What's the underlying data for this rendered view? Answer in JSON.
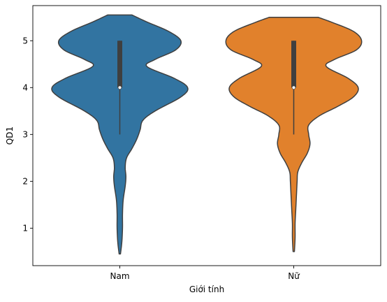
{
  "chart_data": {
    "type": "violin",
    "title": "",
    "xlabel": "Giới tính",
    "ylabel": "QD1",
    "ylim": [
      0.2,
      5.75
    ],
    "yticks": [
      1,
      2,
      3,
      4,
      5
    ],
    "categories": [
      "Nam",
      "Nữ"
    ],
    "grid": false,
    "violins": [
      {
        "category": "Nam",
        "color": "#3274a1",
        "median": 4,
        "q1": 4,
        "q3": 5,
        "whisker_low": 3,
        "whisker_high": 5,
        "min": 0.45,
        "max": 5.55,
        "density_profile": [
          [
            0.45,
            0.01
          ],
          [
            0.7,
            0.03
          ],
          [
            1.0,
            0.04
          ],
          [
            1.3,
            0.04
          ],
          [
            1.6,
            0.05
          ],
          [
            1.9,
            0.08
          ],
          [
            2.1,
            0.09
          ],
          [
            2.3,
            0.08
          ],
          [
            2.5,
            0.1
          ],
          [
            2.7,
            0.18
          ],
          [
            2.9,
            0.25
          ],
          [
            3.1,
            0.3
          ],
          [
            3.3,
            0.34
          ],
          [
            3.5,
            0.52
          ],
          [
            3.8,
            0.9
          ],
          [
            4.0,
            1.0
          ],
          [
            4.2,
            0.8
          ],
          [
            4.45,
            0.4
          ],
          [
            4.6,
            0.52
          ],
          [
            4.8,
            0.82
          ],
          [
            5.0,
            0.9
          ],
          [
            5.2,
            0.72
          ],
          [
            5.4,
            0.4
          ],
          [
            5.55,
            0.18
          ]
        ]
      },
      {
        "category": "Nữ",
        "color": "#e1812c",
        "median": 4,
        "q1": 4,
        "q3": 5,
        "whisker_low": 3,
        "whisker_high": 5,
        "min": 0.5,
        "max": 5.5,
        "density_profile": [
          [
            0.5,
            0.01
          ],
          [
            0.8,
            0.02
          ],
          [
            1.1,
            0.02
          ],
          [
            1.4,
            0.03
          ],
          [
            1.7,
            0.04
          ],
          [
            2.0,
            0.05
          ],
          [
            2.2,
            0.06
          ],
          [
            2.4,
            0.12
          ],
          [
            2.6,
            0.2
          ],
          [
            2.8,
            0.24
          ],
          [
            3.0,
            0.22
          ],
          [
            3.2,
            0.22
          ],
          [
            3.4,
            0.38
          ],
          [
            3.6,
            0.65
          ],
          [
            3.8,
            0.88
          ],
          [
            4.0,
            0.95
          ],
          [
            4.2,
            0.8
          ],
          [
            4.45,
            0.48
          ],
          [
            4.6,
            0.6
          ],
          [
            4.8,
            0.92
          ],
          [
            5.0,
            1.0
          ],
          [
            5.2,
            0.88
          ],
          [
            5.4,
            0.55
          ],
          [
            5.5,
            0.36
          ]
        ]
      }
    ]
  }
}
